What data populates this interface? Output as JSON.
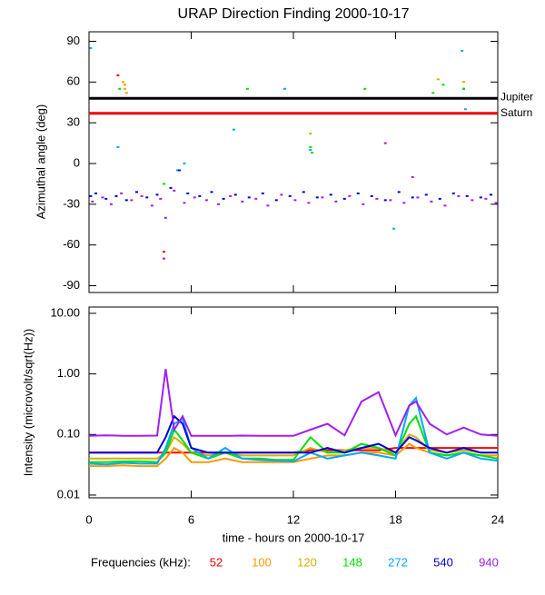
{
  "chart_data": [
    {
      "type": "scatter",
      "title": "URAP Direction Finding  2000-10-17",
      "y_label": "Azimuthal angle (deg)",
      "xlim": [
        0,
        24
      ],
      "ylim": [
        -95,
        97
      ],
      "yticks": [
        -90,
        -60,
        -30,
        0,
        30,
        60,
        90
      ],
      "reference_lines": [
        {
          "name": "Jupiter",
          "value": 48,
          "color": "#000000"
        },
        {
          "name": "Saturn",
          "value": 37,
          "color": "#ee0000"
        }
      ],
      "series": [
        {
          "name": "52",
          "color": "#ff0000",
          "x": [
            1.7,
            22.0,
            4.4
          ],
          "values": [
            65,
            55,
            -65
          ]
        },
        {
          "name": "100",
          "color": "#ff9900",
          "x": [
            2.1,
            2.2
          ],
          "values": [
            58,
            52
          ]
        },
        {
          "name": "120",
          "color": "#d4b000",
          "x": [
            2.0,
            2.1,
            13.0,
            20.5,
            22.0
          ],
          "values": [
            60,
            55,
            22,
            62,
            60
          ]
        },
        {
          "name": "148",
          "color": "#00e000",
          "x": [
            1.8,
            9.3,
            13.0,
            13.1,
            16.2,
            20.2,
            20.8,
            22.0,
            4.4
          ],
          "values": [
            55,
            55,
            12,
            8,
            55,
            52,
            58,
            55,
            -15
          ]
        },
        {
          "name": "272",
          "color": "#00a8ff",
          "x": [
            0.1,
            1.7,
            5.2,
            5.6,
            8.5,
            13.0,
            17.9,
            21.9,
            22.1,
            11.5
          ],
          "values": [
            85,
            12,
            -5,
            0,
            25,
            10,
            -48,
            83,
            40,
            55
          ]
        },
        {
          "name": "540",
          "color": "#0000dd",
          "x": [
            0.4,
            1.0,
            1.6,
            2.2,
            2.8,
            3.4,
            4.0,
            4.8,
            5.3,
            5.8,
            6.5,
            7.2,
            7.9,
            8.6,
            9.4,
            10.2,
            11.0,
            11.8,
            12.6,
            13.4,
            14.2,
            15.0,
            15.8,
            16.6,
            17.4,
            18.2,
            19.0,
            19.8,
            20.6,
            21.4,
            22.2,
            23.0,
            23.6,
            0.1
          ],
          "values": [
            -22,
            -26,
            -24,
            -27,
            -21,
            -25,
            -23,
            -18,
            -5,
            -22,
            -24,
            -21,
            -26,
            -23,
            -25,
            -22,
            -27,
            -24,
            -21,
            -25,
            -23,
            -26,
            -22,
            -24,
            -27,
            -21,
            -25,
            -23,
            -26,
            -22,
            -24,
            -25,
            -23,
            -24
          ]
        },
        {
          "name": "940",
          "color": "#a020f0",
          "x": [
            0.2,
            0.8,
            1.3,
            1.9,
            2.5,
            3.1,
            3.7,
            4.2,
            4.5,
            5.0,
            5.6,
            6.2,
            6.9,
            7.6,
            8.3,
            9.0,
            9.8,
            10.5,
            11.3,
            12.1,
            12.9,
            13.7,
            14.5,
            15.3,
            16.1,
            16.9,
            17.7,
            18.5,
            19.3,
            20.1,
            20.9,
            21.7,
            22.5,
            23.3,
            23.9,
            4.4,
            17.4,
            19.0
          ],
          "values": [
            -28,
            -25,
            -30,
            -22,
            -27,
            -24,
            -31,
            -26,
            -40,
            -20,
            -29,
            -25,
            -27,
            -30,
            -24,
            -28,
            -26,
            -31,
            -23,
            -27,
            -29,
            -25,
            -28,
            -24,
            -30,
            -26,
            -27,
            -29,
            -25,
            -28,
            -31,
            -24,
            -27,
            -26,
            -29,
            -70,
            15,
            -10
          ]
        }
      ]
    },
    {
      "type": "line",
      "x_label": "time - hours on 2000-10-17",
      "y_label": "Intensity (microvolt/sqrt(Hz))",
      "legend_title": "Frequencies (kHz):",
      "log_scale": true,
      "xlim": [
        0,
        24
      ],
      "ylim": [
        0.009,
        12.7
      ],
      "xticks": [
        0,
        6,
        12,
        18,
        24
      ],
      "yticks": [
        {
          "value": 0.01,
          "label": "0.01"
        },
        {
          "value": 0.1,
          "label": "0.10"
        },
        {
          "value": 1,
          "label": "1.00"
        },
        {
          "value": 10,
          "label": "10.00"
        }
      ],
      "x": [
        0,
        1,
        2,
        3,
        4,
        4.5,
        5,
        5.5,
        6,
        7,
        8,
        9,
        10,
        11,
        12,
        13,
        14,
        15,
        16,
        17,
        18,
        18.8,
        19.2,
        20,
        21,
        22,
        23,
        24
      ],
      "series": [
        {
          "name": "52",
          "color": "#ff0000",
          "values": [
            0.05,
            0.05,
            0.05,
            0.05,
            0.05,
            0.05,
            0.05,
            0.05,
            0.05,
            0.05,
            0.05,
            0.05,
            0.05,
            0.05,
            0.05,
            0.055,
            0.055,
            0.055,
            0.055,
            0.055,
            0.06,
            0.06,
            0.06,
            0.06,
            0.06,
            0.06,
            0.06,
            0.06
          ]
        },
        {
          "name": "100",
          "color": "#ff9900",
          "values": [
            0.03,
            0.03,
            0.031,
            0.03,
            0.03,
            0.04,
            0.06,
            0.05,
            0.035,
            0.035,
            0.04,
            0.035,
            0.035,
            0.035,
            0.035,
            0.04,
            0.045,
            0.045,
            0.05,
            0.05,
            0.045,
            0.07,
            0.06,
            0.05,
            0.045,
            0.05,
            0.045,
            0.045
          ]
        },
        {
          "name": "120",
          "color": "#d4b000",
          "values": [
            0.04,
            0.04,
            0.04,
            0.04,
            0.04,
            0.05,
            0.09,
            0.07,
            0.05,
            0.045,
            0.05,
            0.045,
            0.045,
            0.045,
            0.045,
            0.06,
            0.05,
            0.055,
            0.06,
            0.06,
            0.05,
            0.1,
            0.09,
            0.055,
            0.05,
            0.055,
            0.05,
            0.05
          ]
        },
        {
          "name": "148",
          "color": "#00e000",
          "values": [
            0.035,
            0.035,
            0.036,
            0.036,
            0.035,
            0.05,
            0.12,
            0.08,
            0.05,
            0.04,
            0.05,
            0.04,
            0.04,
            0.038,
            0.038,
            0.09,
            0.05,
            0.05,
            0.07,
            0.06,
            0.045,
            0.15,
            0.2,
            0.05,
            0.045,
            0.05,
            0.045,
            0.04
          ]
        },
        {
          "name": "272",
          "color": "#00a8ff",
          "values": [
            0.033,
            0.032,
            0.034,
            0.033,
            0.033,
            0.06,
            0.15,
            0.18,
            0.06,
            0.04,
            0.06,
            0.04,
            0.038,
            0.037,
            0.036,
            0.05,
            0.04,
            0.045,
            0.05,
            0.045,
            0.04,
            0.3,
            0.4,
            0.05,
            0.04,
            0.05,
            0.04,
            0.037
          ]
        },
        {
          "name": "540",
          "color": "#0000dd",
          "values": [
            0.05,
            0.05,
            0.05,
            0.05,
            0.05,
            0.09,
            0.2,
            0.15,
            0.06,
            0.05,
            0.05,
            0.05,
            0.05,
            0.05,
            0.05,
            0.05,
            0.06,
            0.05,
            0.06,
            0.07,
            0.05,
            0.09,
            0.08,
            0.06,
            0.05,
            0.06,
            0.05,
            0.05
          ]
        },
        {
          "name": "940",
          "color": "#a020f0",
          "values": [
            0.095,
            0.097,
            0.095,
            0.095,
            0.096,
            1.2,
            0.12,
            0.2,
            0.095,
            0.095,
            0.095,
            0.096,
            0.095,
            0.095,
            0.095,
            0.12,
            0.15,
            0.097,
            0.35,
            0.5,
            0.097,
            0.3,
            0.35,
            0.15,
            0.1,
            0.13,
            0.1,
            0.095
          ]
        }
      ]
    }
  ]
}
